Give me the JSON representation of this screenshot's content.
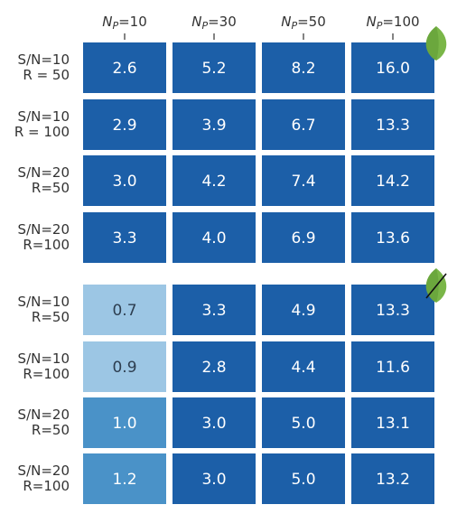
{
  "chart_data": {
    "type": "heatmap",
    "columns": [
      {
        "label": "N",
        "sub": "P",
        "value": "=10"
      },
      {
        "label": "N",
        "sub": "P",
        "value": "=30"
      },
      {
        "label": "N",
        "sub": "P",
        "value": "=50"
      },
      {
        "label": "N",
        "sub": "P",
        "value": "=100"
      }
    ],
    "panels": [
      {
        "rows": [
          {
            "label": [
              "S/N=10",
              "R = 50"
            ],
            "values": [
              2.6,
              5.2,
              8.2,
              16.0
            ]
          },
          {
            "label": [
              "S/N=10",
              "R = 100"
            ],
            "values": [
              2.9,
              3.9,
              6.7,
              13.3
            ]
          },
          {
            "label": [
              "S/N=20",
              "R=50"
            ],
            "values": [
              3.0,
              4.2,
              7.4,
              14.2
            ]
          },
          {
            "label": [
              "S/N=20",
              "R=100"
            ],
            "values": [
              3.3,
              4.0,
              6.9,
              13.6
            ]
          }
        ],
        "corner_icon": "leaf-icon"
      },
      {
        "rows": [
          {
            "label": [
              "S/N=10",
              "R=50"
            ],
            "values": [
              0.7,
              3.3,
              4.9,
              13.3
            ]
          },
          {
            "label": [
              "S/N=10",
              "R=100"
            ],
            "values": [
              0.9,
              2.8,
              4.4,
              11.6
            ]
          },
          {
            "label": [
              "S/N=20",
              "R=50"
            ],
            "values": [
              1.0,
              3.0,
              5.0,
              13.1
            ]
          },
          {
            "label": [
              "S/N=20",
              "R=100"
            ],
            "values": [
              1.2,
              3.0,
              5.0,
              13.2
            ]
          }
        ],
        "corner_icon": "crossed-leaf-icon"
      }
    ],
    "colors": {
      "dark": "#1c5fa8",
      "mid": "#4a92c8",
      "light": "#9cc6e4",
      "leaf": "#7ab648",
      "leaf_dark": "#5e9a34"
    }
  }
}
